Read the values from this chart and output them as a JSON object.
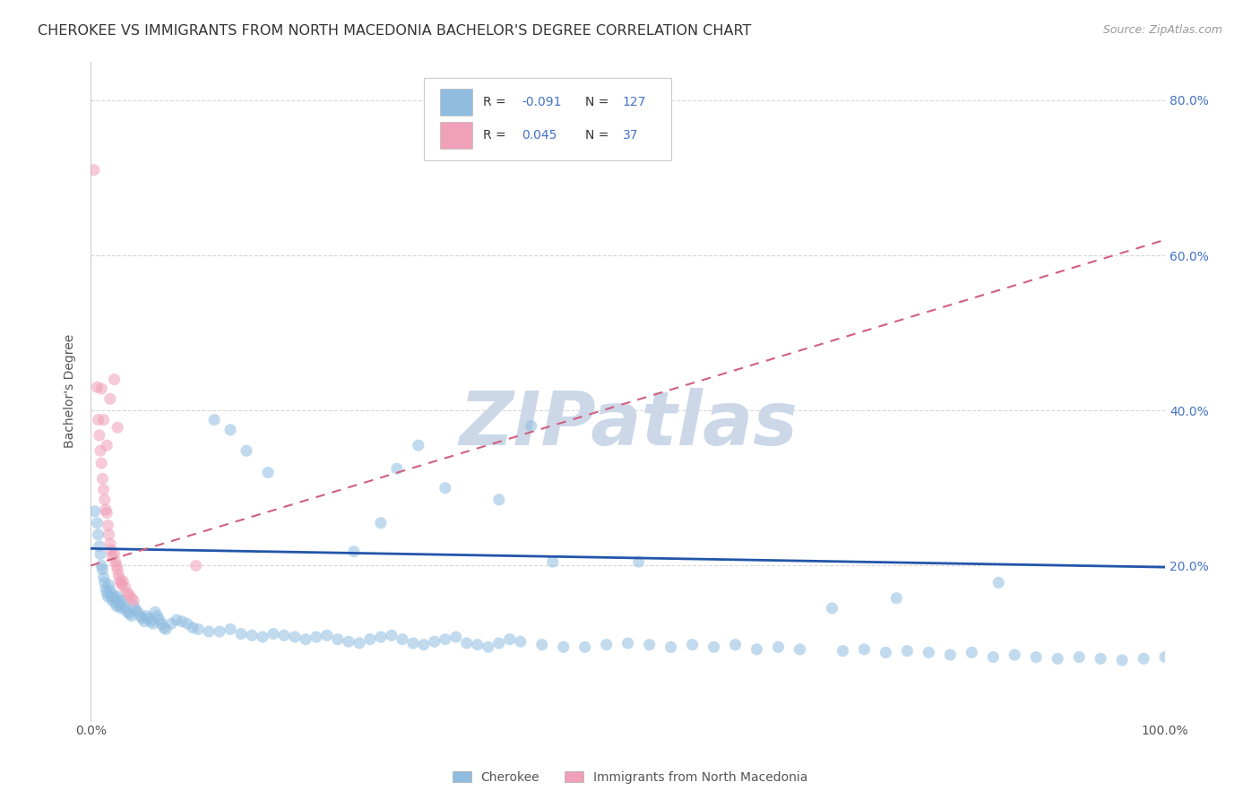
{
  "title": "CHEROKEE VS IMMIGRANTS FROM NORTH MACEDONIA BACHELOR'S DEGREE CORRELATION CHART",
  "source": "Source: ZipAtlas.com",
  "ylabel": "Bachelor's Degree",
  "watermark": "ZIPatlas",
  "legend_R1": "-0.091",
  "legend_N1": "127",
  "legend_R2": "0.045",
  "legend_N2": "37",
  "blue_scatter_x": [
    0.004,
    0.006,
    0.007,
    0.008,
    0.009,
    0.01,
    0.011,
    0.012,
    0.013,
    0.014,
    0.015,
    0.016,
    0.017,
    0.018,
    0.019,
    0.02,
    0.021,
    0.022,
    0.023,
    0.024,
    0.025,
    0.026,
    0.027,
    0.028,
    0.029,
    0.03,
    0.032,
    0.034,
    0.036,
    0.038,
    0.04,
    0.042,
    0.044,
    0.046,
    0.048,
    0.05,
    0.052,
    0.054,
    0.056,
    0.058,
    0.06,
    0.062,
    0.064,
    0.066,
    0.068,
    0.07,
    0.075,
    0.08,
    0.085,
    0.09,
    0.095,
    0.1,
    0.11,
    0.12,
    0.13,
    0.14,
    0.15,
    0.16,
    0.17,
    0.18,
    0.19,
    0.2,
    0.21,
    0.22,
    0.23,
    0.24,
    0.25,
    0.26,
    0.27,
    0.28,
    0.29,
    0.3,
    0.31,
    0.32,
    0.33,
    0.34,
    0.35,
    0.36,
    0.37,
    0.38,
    0.39,
    0.4,
    0.42,
    0.44,
    0.46,
    0.48,
    0.5,
    0.52,
    0.54,
    0.56,
    0.58,
    0.6,
    0.62,
    0.64,
    0.66,
    0.7,
    0.72,
    0.74,
    0.76,
    0.78,
    0.8,
    0.82,
    0.84,
    0.86,
    0.88,
    0.9,
    0.92,
    0.94,
    0.96,
    0.98,
    1.0,
    0.845,
    0.75,
    0.69,
    0.51,
    0.43,
    0.41,
    0.38,
    0.33,
    0.305,
    0.285,
    0.27,
    0.245,
    0.165,
    0.145,
    0.13,
    0.115
  ],
  "blue_scatter_y": [
    0.27,
    0.255,
    0.24,
    0.225,
    0.215,
    0.2,
    0.195,
    0.185,
    0.178,
    0.17,
    0.165,
    0.16,
    0.175,
    0.168,
    0.16,
    0.155,
    0.162,
    0.158,
    0.152,
    0.148,
    0.16,
    0.155,
    0.148,
    0.145,
    0.155,
    0.15,
    0.145,
    0.14,
    0.138,
    0.135,
    0.148,
    0.143,
    0.14,
    0.135,
    0.132,
    0.128,
    0.135,
    0.132,
    0.128,
    0.125,
    0.14,
    0.135,
    0.13,
    0.125,
    0.12,
    0.118,
    0.125,
    0.13,
    0.128,
    0.125,
    0.12,
    0.118,
    0.115,
    0.115,
    0.118,
    0.112,
    0.11,
    0.108,
    0.112,
    0.11,
    0.108,
    0.105,
    0.108,
    0.11,
    0.105,
    0.102,
    0.1,
    0.105,
    0.108,
    0.11,
    0.105,
    0.1,
    0.098,
    0.102,
    0.105,
    0.108,
    0.1,
    0.098,
    0.095,
    0.1,
    0.105,
    0.102,
    0.098,
    0.095,
    0.095,
    0.098,
    0.1,
    0.098,
    0.095,
    0.098,
    0.095,
    0.098,
    0.092,
    0.095,
    0.092,
    0.09,
    0.092,
    0.088,
    0.09,
    0.088,
    0.085,
    0.088,
    0.082,
    0.085,
    0.082,
    0.08,
    0.082,
    0.08,
    0.078,
    0.08,
    0.082,
    0.178,
    0.158,
    0.145,
    0.205,
    0.205,
    0.38,
    0.285,
    0.3,
    0.355,
    0.325,
    0.255,
    0.218,
    0.32,
    0.348,
    0.375,
    0.388
  ],
  "pink_scatter_x": [
    0.003,
    0.006,
    0.007,
    0.008,
    0.009,
    0.01,
    0.011,
    0.012,
    0.013,
    0.014,
    0.015,
    0.016,
    0.017,
    0.018,
    0.019,
    0.02,
    0.022,
    0.023,
    0.024,
    0.025,
    0.026,
    0.027,
    0.028,
    0.029,
    0.03,
    0.032,
    0.034,
    0.036,
    0.038,
    0.04,
    0.015,
    0.012,
    0.018,
    0.01,
    0.022,
    0.025,
    0.098
  ],
  "pink_scatter_y": [
    0.71,
    0.43,
    0.388,
    0.368,
    0.348,
    0.332,
    0.312,
    0.298,
    0.285,
    0.272,
    0.268,
    0.252,
    0.24,
    0.228,
    0.22,
    0.212,
    0.215,
    0.205,
    0.2,
    0.195,
    0.188,
    0.182,
    0.178,
    0.175,
    0.18,
    0.172,
    0.165,
    0.162,
    0.158,
    0.155,
    0.355,
    0.388,
    0.415,
    0.428,
    0.44,
    0.378,
    0.2
  ],
  "blue_line_x": [
    0.0,
    1.0
  ],
  "blue_line_y": [
    0.222,
    0.198
  ],
  "pink_line_x": [
    0.0,
    1.0
  ],
  "pink_line_y": [
    0.2,
    0.62
  ],
  "xlim": [
    0.0,
    1.0
  ],
  "ylim": [
    0.0,
    0.85
  ],
  "yticks": [
    0.2,
    0.4,
    0.6,
    0.8
  ],
  "ytick_labels": [
    "20.0%",
    "40.0%",
    "60.0%",
    "80.0%"
  ],
  "xticks": [
    0.0,
    0.25,
    0.5,
    0.75,
    1.0
  ],
  "xtick_labels_show": [
    "0.0%",
    "100.0%"
  ],
  "grid_color": "#d8d8d8",
  "scatter_alpha": 0.55,
  "scatter_size": 90,
  "blue_color": "#90bce0",
  "pink_color": "#f0a0b8",
  "blue_line_color": "#2255aa",
  "pink_line_color": "#d06080",
  "background_color": "#ffffff",
  "title_fontsize": 11.5,
  "source_fontsize": 9,
  "watermark_color": "#ccd8e8",
  "watermark_fontsize": 60,
  "stat_color": "#4472c4",
  "label_color": "#555555",
  "tick_color": "#4472c4",
  "legend_label1": "Cherokee",
  "legend_label2": "Immigrants from North Macedonia"
}
